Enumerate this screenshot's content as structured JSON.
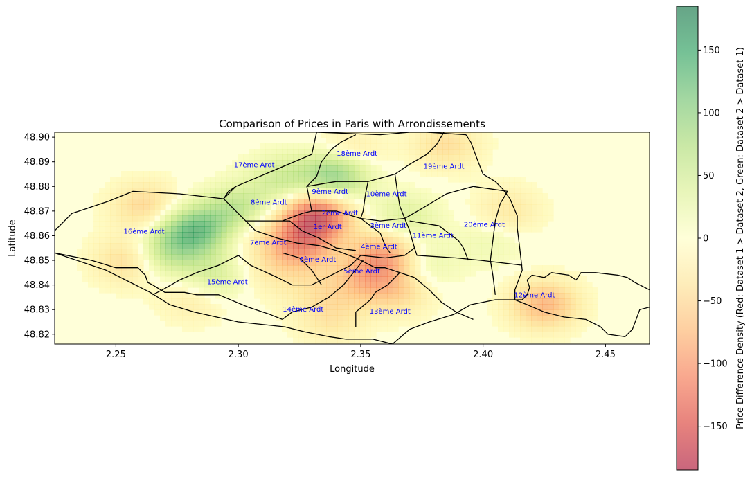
{
  "chart_data": {
    "type": "heatmap",
    "title": "Comparison of Prices in Paris with Arrondissements",
    "xlabel": "Longitude",
    "ylabel": "Latitude",
    "xlim": [
      2.225,
      2.468
    ],
    "ylim": [
      48.816,
      48.902
    ],
    "x_ticks": [
      2.25,
      2.3,
      2.35,
      2.4,
      2.45
    ],
    "x_tick_labels": [
      "2.25",
      "2.30",
      "2.35",
      "2.40",
      "2.45"
    ],
    "y_ticks": [
      48.82,
      48.83,
      48.84,
      48.85,
      48.86,
      48.87,
      48.88,
      48.89,
      48.9
    ],
    "y_tick_labels": [
      "48.82",
      "48.83",
      "48.84",
      "48.85",
      "48.86",
      "48.87",
      "48.88",
      "48.89",
      "48.90"
    ],
    "colorbar": {
      "label": "Price Difference Density (Red: Dataset 1 > Dataset 2, Green: Dataset 2 > Dataset 1)",
      "range": [
        -185,
        185
      ],
      "ticks": [
        -150,
        -100,
        -50,
        0,
        50,
        100,
        150
      ],
      "tick_labels": [
        "−150",
        "−100",
        "−50",
        "0",
        "50",
        "100",
        "150"
      ],
      "colormap": [
        "#a50026",
        "#d73027",
        "#f46d43",
        "#fdae61",
        "#fee08b",
        "#ffffbf",
        "#d9ef8b",
        "#a6d96a",
        "#66bd63",
        "#1a9850",
        "#006837"
      ],
      "alpha": 0.6
    },
    "density_hotspots": [
      {
        "lon": 2.282,
        "lat": 48.862,
        "value": 140
      },
      {
        "lon": 2.3,
        "lat": 48.87,
        "value": 90
      },
      {
        "lon": 2.27,
        "lat": 48.853,
        "value": 70
      },
      {
        "lon": 2.262,
        "lat": 48.872,
        "value": -60
      },
      {
        "lon": 2.34,
        "lat": 48.885,
        "value": 130
      },
      {
        "lon": 2.318,
        "lat": 48.883,
        "value": 60
      },
      {
        "lon": 2.368,
        "lat": 48.867,
        "value": 50
      },
      {
        "lon": 2.29,
        "lat": 48.843,
        "value": 60
      },
      {
        "lon": 2.375,
        "lat": 48.848,
        "value": 40
      },
      {
        "lon": 2.332,
        "lat": 48.868,
        "value": -170
      },
      {
        "lon": 2.325,
        "lat": 48.856,
        "value": -110
      },
      {
        "lon": 2.36,
        "lat": 48.852,
        "value": -110
      },
      {
        "lon": 2.425,
        "lat": 48.832,
        "value": -90
      },
      {
        "lon": 2.255,
        "lat": 48.85,
        "value": -60
      },
      {
        "lon": 2.305,
        "lat": 48.863,
        "value": -40
      },
      {
        "lon": 2.35,
        "lat": 48.842,
        "value": -60
      },
      {
        "lon": 2.365,
        "lat": 48.838,
        "value": -60
      },
      {
        "lon": 2.345,
        "lat": 48.893,
        "value": -50
      },
      {
        "lon": 2.385,
        "lat": 48.897,
        "value": -50
      },
      {
        "lon": 2.41,
        "lat": 48.87,
        "value": -40
      },
      {
        "lon": 2.338,
        "lat": 48.826,
        "value": -40
      },
      {
        "lon": 2.332,
        "lat": 48.838,
        "value": -30
      },
      {
        "lon": 2.282,
        "lat": 48.835,
        "value": -40
      },
      {
        "lon": 2.312,
        "lat": 48.845,
        "value": -30
      },
      {
        "lon": 2.403,
        "lat": 48.858,
        "value": 25
      }
    ],
    "arrondissements": [
      {
        "label": "1er Ardt",
        "lon": 2.3365,
        "lat": 48.8627
      },
      {
        "label": "2ème Ardt",
        "lon": 2.3415,
        "lat": 48.8683
      },
      {
        "label": "3ème Ardt",
        "lon": 2.3613,
        "lat": 48.8632
      },
      {
        "label": "4ème Ardt",
        "lon": 2.3575,
        "lat": 48.8547
      },
      {
        "label": "5ème Ardt",
        "lon": 2.3505,
        "lat": 48.8446
      },
      {
        "label": "6ème Ardt",
        "lon": 2.3325,
        "lat": 48.8495
      },
      {
        "label": "7ème Ardt",
        "lon": 2.3122,
        "lat": 48.8563
      },
      {
        "label": "8ème Ardt",
        "lon": 2.3125,
        "lat": 48.8727
      },
      {
        "label": "9ème Ardt",
        "lon": 2.3375,
        "lat": 48.877
      },
      {
        "label": "10ème Ardt",
        "lon": 2.3605,
        "lat": 48.876
      },
      {
        "label": "11ème Ardt",
        "lon": 2.3795,
        "lat": 48.8592
      },
      {
        "label": "12ème Ardt",
        "lon": 2.421,
        "lat": 48.835
      },
      {
        "label": "13ème Ardt",
        "lon": 2.362,
        "lat": 48.8283
      },
      {
        "label": "14ème Ardt",
        "lon": 2.3265,
        "lat": 48.8292
      },
      {
        "label": "15ème Ardt",
        "lon": 2.2955,
        "lat": 48.8403
      },
      {
        "label": "16ème Ardt",
        "lon": 2.2615,
        "lat": 48.8608
      },
      {
        "label": "17ème Ardt",
        "lon": 2.3065,
        "lat": 48.8878
      },
      {
        "label": "18ème Ardt",
        "lon": 2.3485,
        "lat": 48.8925
      },
      {
        "label": "19ème Ardt",
        "lon": 2.384,
        "lat": 48.8873
      },
      {
        "label": "20ème Ardt",
        "lon": 2.4005,
        "lat": 48.8637
      }
    ],
    "boundaries": [
      [
        [
          2.225,
          48.862
        ],
        [
          2.232,
          48.869
        ],
        [
          2.247,
          48.874
        ],
        [
          2.257,
          48.878
        ],
        [
          2.276,
          48.877
        ],
        [
          2.294,
          48.875
        ],
        [
          2.296,
          48.878
        ],
        [
          2.299,
          48.88
        ],
        [
          2.33,
          48.893
        ],
        [
          2.332,
          48.902
        ]
      ],
      [
        [
          2.332,
          48.902
        ],
        [
          2.358,
          48.901
        ],
        [
          2.37,
          48.902
        ],
        [
          2.377,
          48.902
        ],
        [
          2.393,
          48.901
        ],
        [
          2.395,
          48.898
        ],
        [
          2.398,
          48.89
        ],
        [
          2.4,
          48.885
        ],
        [
          2.405,
          48.882
        ],
        [
          2.408,
          48.879
        ],
        [
          2.411,
          48.875
        ],
        [
          2.414,
          48.868
        ],
        [
          2.414,
          48.863
        ],
        [
          2.415,
          48.855
        ],
        [
          2.416,
          48.846
        ],
        [
          2.413,
          48.838
        ],
        [
          2.413,
          48.834
        ]
      ],
      [
        [
          2.413,
          48.834
        ],
        [
          2.418,
          48.832
        ],
        [
          2.425,
          48.829
        ],
        [
          2.433,
          48.827
        ],
        [
          2.442,
          48.826
        ],
        [
          2.448,
          48.823
        ],
        [
          2.451,
          48.82
        ],
        [
          2.458,
          48.819
        ],
        [
          2.461,
          48.822
        ],
        [
          2.464,
          48.83
        ],
        [
          2.468,
          48.831
        ]
      ],
      [
        [
          2.468,
          48.838
        ],
        [
          2.462,
          48.841
        ],
        [
          2.459,
          48.843
        ],
        [
          2.455,
          48.844
        ],
        [
          2.446,
          48.845
        ],
        [
          2.44,
          48.845
        ],
        [
          2.438,
          48.842
        ],
        [
          2.435,
          48.844
        ],
        [
          2.428,
          48.845
        ],
        [
          2.425,
          48.843
        ],
        [
          2.42,
          48.844
        ],
        [
          2.418,
          48.842
        ],
        [
          2.419,
          48.839
        ],
        [
          2.418,
          48.836
        ],
        [
          2.416,
          48.834
        ],
        [
          2.413,
          48.834
        ]
      ],
      [
        [
          2.413,
          48.834
        ],
        [
          2.405,
          48.834
        ],
        [
          2.395,
          48.832
        ],
        [
          2.388,
          48.828
        ],
        [
          2.378,
          48.825
        ],
        [
          2.37,
          48.822
        ],
        [
          2.363,
          48.816
        ]
      ],
      [
        [
          2.363,
          48.816
        ],
        [
          2.355,
          48.818
        ],
        [
          2.348,
          48.818
        ],
        [
          2.344,
          48.818
        ],
        [
          2.337,
          48.819
        ],
        [
          2.327,
          48.821
        ],
        [
          2.319,
          48.823
        ],
        [
          2.3,
          48.825
        ],
        [
          2.282,
          48.829
        ],
        [
          2.272,
          48.832
        ],
        [
          2.264,
          48.837
        ],
        [
          2.254,
          48.842
        ],
        [
          2.246,
          48.846
        ],
        [
          2.24,
          48.848
        ],
        [
          2.225,
          48.853
        ]
      ],
      [
        [
          2.225,
          48.853
        ],
        [
          2.24,
          48.85
        ],
        [
          2.25,
          48.847
        ],
        [
          2.259,
          48.847
        ],
        [
          2.262,
          48.844
        ],
        [
          2.263,
          48.841
        ],
        [
          2.265,
          48.84
        ],
        [
          2.27,
          48.837
        ],
        [
          2.278,
          48.837
        ],
        [
          2.283,
          48.836
        ],
        [
          2.292,
          48.836
        ],
        [
          2.304,
          48.831
        ],
        [
          2.313,
          48.828
        ],
        [
          2.318,
          48.826
        ]
      ],
      [
        [
          2.244,
          48.838
        ]
      ],
      [
        [
          2.299,
          48.88
        ],
        [
          2.294,
          48.875
        ],
        [
          2.299,
          48.87
        ],
        [
          2.303,
          48.866
        ],
        [
          2.321,
          48.866
        ],
        [
          2.326,
          48.862
        ],
        [
          2.333,
          48.859
        ],
        [
          2.34,
          48.855
        ],
        [
          2.348,
          48.854
        ]
      ],
      [
        [
          2.318,
          48.866
        ],
        [
          2.326,
          48.869
        ],
        [
          2.33,
          48.87
        ],
        [
          2.333,
          48.87
        ],
        [
          2.34,
          48.87
        ],
        [
          2.35,
          48.867
        ],
        [
          2.358,
          48.866
        ],
        [
          2.368,
          48.867
        ]
      ],
      [
        [
          2.33,
          48.87
        ],
        [
          2.328,
          48.88
        ],
        [
          2.332,
          48.884
        ],
        [
          2.334,
          48.89
        ],
        [
          2.338,
          48.895
        ],
        [
          2.342,
          48.898
        ],
        [
          2.348,
          48.901
        ]
      ],
      [
        [
          2.328,
          48.88
        ],
        [
          2.34,
          48.882
        ],
        [
          2.353,
          48.882
        ],
        [
          2.364,
          48.885
        ],
        [
          2.37,
          48.889
        ],
        [
          2.377,
          48.893
        ],
        [
          2.381,
          48.897
        ],
        [
          2.384,
          48.902
        ]
      ],
      [
        [
          2.353,
          48.882
        ],
        [
          2.352,
          48.877
        ],
        [
          2.351,
          48.87
        ],
        [
          2.35,
          48.867
        ]
      ],
      [
        [
          2.364,
          48.885
        ],
        [
          2.365,
          48.878
        ],
        [
          2.366,
          48.872
        ],
        [
          2.368,
          48.867
        ],
        [
          2.375,
          48.871
        ],
        [
          2.385,
          48.877
        ],
        [
          2.396,
          48.88
        ],
        [
          2.41,
          48.878
        ]
      ],
      [
        [
          2.368,
          48.867
        ],
        [
          2.37,
          48.862
        ],
        [
          2.372,
          48.855
        ],
        [
          2.373,
          48.852
        ],
        [
          2.389,
          48.851
        ],
        [
          2.399,
          48.85
        ],
        [
          2.416,
          48.848
        ]
      ],
      [
        [
          2.372,
          48.855
        ],
        [
          2.368,
          48.852
        ],
        [
          2.36,
          48.851
        ],
        [
          2.35,
          48.852
        ],
        [
          2.346,
          48.848
        ],
        [
          2.338,
          48.844
        ],
        [
          2.33,
          48.84
        ],
        [
          2.322,
          48.84
        ],
        [
          2.316,
          48.843
        ],
        [
          2.305,
          48.848
        ],
        [
          2.3,
          48.852
        ]
      ],
      [
        [
          2.303,
          48.866
        ],
        [
          2.307,
          48.862
        ],
        [
          2.316,
          48.859
        ],
        [
          2.324,
          48.857
        ],
        [
          2.333,
          48.856
        ],
        [
          2.34,
          48.854
        ],
        [
          2.348,
          48.851
        ],
        [
          2.352,
          48.849
        ],
        [
          2.356,
          48.847
        ],
        [
          2.36,
          48.847
        ],
        [
          2.366,
          48.845
        ],
        [
          2.372,
          48.843
        ]
      ],
      [
        [
          2.351,
          48.85
        ],
        [
          2.347,
          48.845
        ],
        [
          2.343,
          48.84
        ]
      ],
      [
        [
          2.366,
          48.845
        ],
        [
          2.361,
          48.84
        ],
        [
          2.356,
          48.837
        ],
        [
          2.354,
          48.834
        ],
        [
          2.348,
          48.829
        ],
        [
          2.348,
          48.823
        ]
      ],
      [
        [
          2.343,
          48.84
        ],
        [
          2.337,
          48.835
        ],
        [
          2.33,
          48.831
        ],
        [
          2.322,
          48.829
        ],
        [
          2.318,
          48.826
        ]
      ],
      [
        [
          2.334,
          48.84
        ],
        [
          2.33,
          48.846
        ],
        [
          2.325,
          48.851
        ],
        [
          2.318,
          48.853
        ]
      ],
      [
        [
          2.3,
          48.852
        ],
        [
          2.292,
          48.848
        ],
        [
          2.283,
          48.845
        ],
        [
          2.276,
          48.842
        ],
        [
          2.269,
          48.838
        ],
        [
          2.265,
          48.836
        ]
      ],
      [
        [
          2.372,
          48.843
        ],
        [
          2.378,
          48.838
        ],
        [
          2.383,
          48.833
        ],
        [
          2.389,
          48.829
        ],
        [
          2.396,
          48.826
        ]
      ],
      [
        [
          2.35,
          48.867
        ],
        [
          2.358,
          48.861
        ],
        [
          2.36,
          48.856
        ],
        [
          2.362,
          48.853
        ]
      ],
      [
        [
          2.394,
          48.85
        ],
        [
          2.392,
          48.855
        ],
        [
          2.39,
          48.858
        ],
        [
          2.386,
          48.861
        ],
        [
          2.382,
          48.864
        ],
        [
          2.376,
          48.865
        ],
        [
          2.37,
          48.866
        ]
      ],
      [
        [
          2.41,
          48.878
        ],
        [
          2.407,
          48.873
        ],
        [
          2.405,
          48.866
        ],
        [
          2.404,
          48.858
        ],
        [
          2.403,
          48.85
        ],
        [
          2.404,
          48.844
        ],
        [
          2.405,
          48.836
        ]
      ]
    ]
  }
}
